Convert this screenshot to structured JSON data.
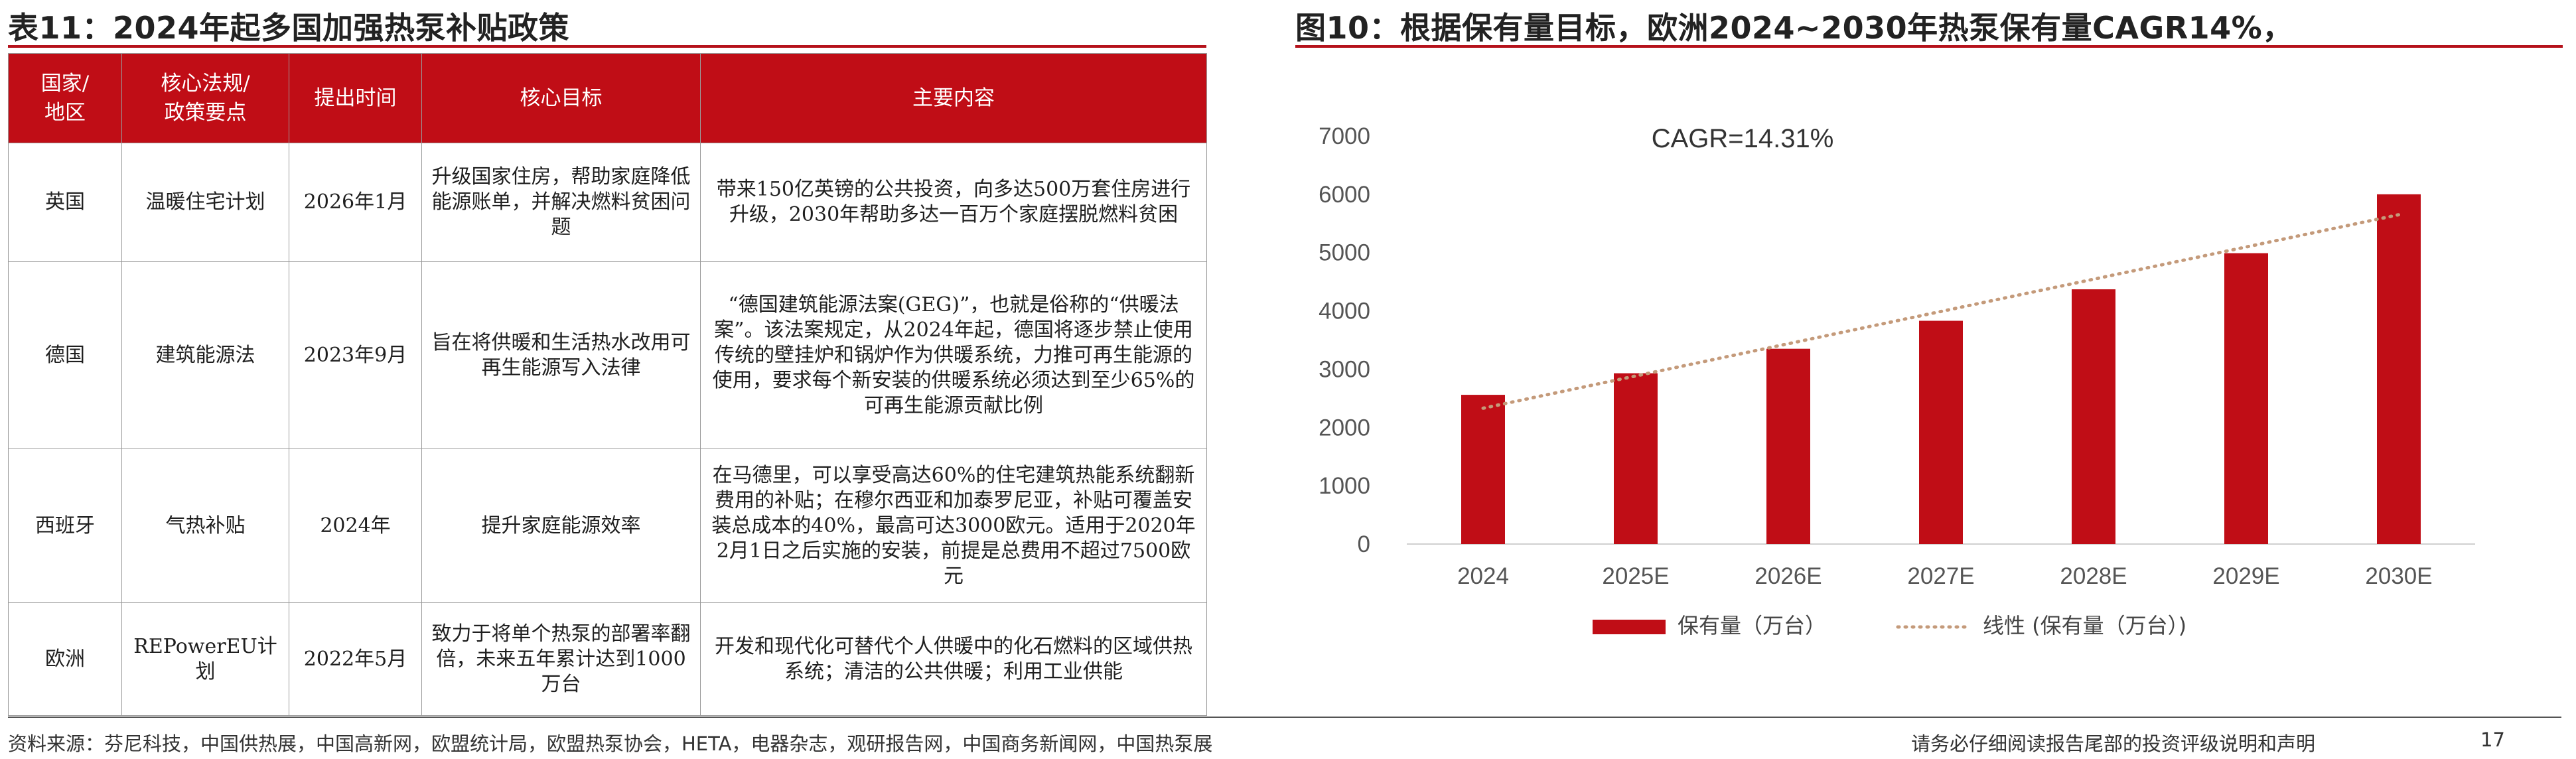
{
  "left_title": "表11：2024年起多国加强热泵补贴政策",
  "right_title": "图10：根据保有量目标，欧洲2024~2030年热泵保有量CAGR14%，",
  "table": {
    "headers": [
      "国家/\n地区",
      "核心法规/\n政策要点",
      "提出时间",
      "核心目标",
      "主要内容"
    ],
    "rows": [
      {
        "region": "英国",
        "policy": "温暖住宅计划",
        "date": "2026年1月",
        "goal": "升级国家住房，帮助家庭降低能源账单，并解决燃料贫困问题",
        "content": "带来150亿英镑的公共投资，向多达500万套住房进行升级，2030年帮助多达一百万个家庭摆脱燃料贫困"
      },
      {
        "region": "德国",
        "policy": "建筑能源法",
        "date": "2023年9月",
        "goal": "旨在将供暖和生活热水改用可再生能源写入法律",
        "content": "“德国建筑能源法案(GEG)”，也就是俗称的“供暖法案”。该法案规定，从2024年起，德国将逐步禁止使用传统的壁挂炉和锅炉作为供暖系统，力推可再生能源的使用，要求每个新安装的供暖系统必须达到至少65%的可再生能源贡献比例"
      },
      {
        "region": "西班牙",
        "policy": "气热补贴",
        "date": "2024年",
        "goal": "提升家庭能源效率",
        "content": "在马德里，可以享受高达60%的住宅建筑热能系统翻新费用的补贴；在穆尔西亚和加泰罗尼亚，补贴可覆盖安装总成本的40%，最高可达3000欧元。适用于2020年2月1日之后实施的安装，前提是总费用不超过7500欧元"
      },
      {
        "region": "欧洲",
        "policy": "REPowerEU计划",
        "date": "2022年5月",
        "goal": "致力于将单个热泵的部署率翻倍，未来五年累计达到1000万台",
        "content": "开发和现代化可替代个人供暖中的化石燃料的区域供热系统；清洁的公共供暖；利用工业供能"
      }
    ]
  },
  "chart_data": {
    "type": "bar",
    "categories": [
      "2024",
      "2025E",
      "2026E",
      "2027E",
      "2028E",
      "2029E",
      "2030E"
    ],
    "series": [
      {
        "name": "保有量（万台）",
        "values": [
          2560,
          2930,
          3350,
          3830,
          4370,
          4990,
          6000
        ]
      }
    ],
    "trendline": {
      "name": "线性 (保有量（万台）)",
      "start": 2330,
      "end": 5650,
      "style": "dotted"
    },
    "annotation": "CAGR=14.31%",
    "ylim": [
      0,
      7000
    ],
    "yticks": [
      0,
      1000,
      2000,
      3000,
      4000,
      5000,
      6000,
      7000
    ],
    "xlabel": "",
    "ylabel": "",
    "grid": false,
    "legend_position": "bottom",
    "colors": {
      "bar": "#c00d16",
      "trend": "#c49a7a"
    }
  },
  "footer": {
    "source": "资料来源：芬尼科技，中国供热展，中国高新网，欧盟统计局，欧盟热泵协会，HETA，电器杂志，观研报告网，中国商务新闻网，中国热泵展",
    "disclaimer": "请务必仔细阅读报告尾部的投资评级说明和声明",
    "page": "17"
  }
}
